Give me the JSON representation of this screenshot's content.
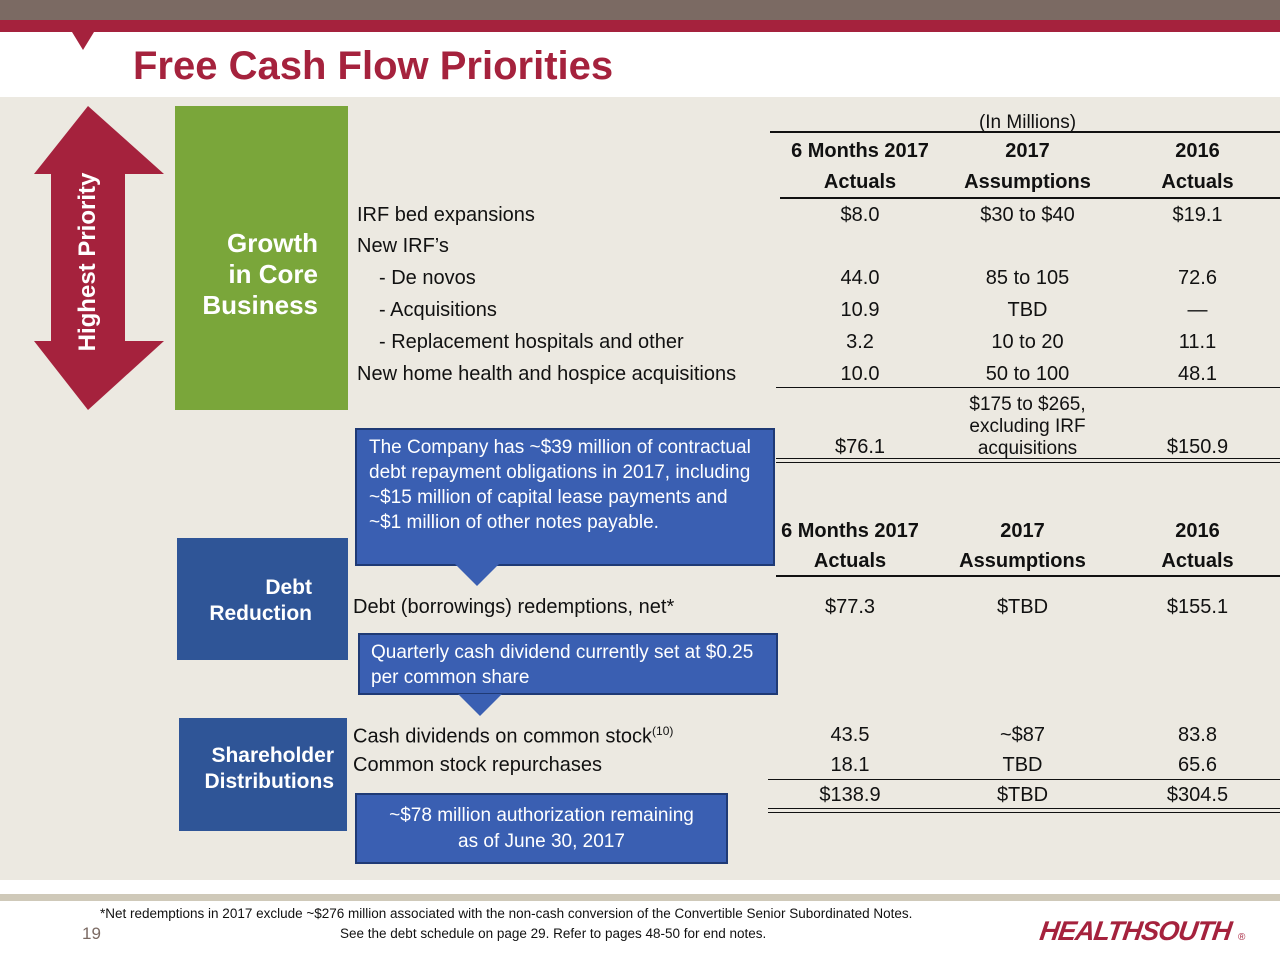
{
  "slide": {
    "title": "Free Cash Flow Priorities",
    "side_label": "Highest Priority",
    "page_number": "19",
    "logo_text": "HEALTHSOUTH",
    "logo_mark": "®"
  },
  "colors": {
    "brand_red": "#a5223d",
    "growth_green": "#7aa63a",
    "callout_blue": "#3a5fb2",
    "header_brown": "#7b6a63"
  },
  "units_note": "(In Millions)",
  "categories": {
    "growth": [
      "Growth",
      "in Core",
      "Business"
    ],
    "debt": [
      "Debt",
      "Reduction"
    ],
    "shareholder": [
      "Shareholder",
      "Distributions"
    ]
  },
  "table1": {
    "headers": [
      {
        "line1": "6 Months 2017",
        "line2": "Actuals"
      },
      {
        "line1": "2017",
        "line2": "Assumptions"
      },
      {
        "line1": "2016",
        "line2": "Actuals"
      }
    ],
    "rows": [
      {
        "label": "IRF bed expansions",
        "v1": "$8.0",
        "v2": "$30 to $40",
        "v3": "$19.1"
      },
      {
        "label": "New IRF’s",
        "v1": "",
        "v2": "",
        "v3": ""
      },
      {
        "label": "- De novos",
        "v1": "44.0",
        "v2": "85 to 105",
        "v3": "72.6"
      },
      {
        "label": "- Acquisitions",
        "v1": "10.9",
        "v2": "TBD",
        "v3": "—"
      },
      {
        "label": "- Replacement hospitals and other",
        "v1": "3.2",
        "v2": "10 to 20",
        "v3": "11.1"
      },
      {
        "label": "New home health and hospice acquisitions",
        "v1": "10.0",
        "v2": "50 to 100",
        "v3": "48.1"
      }
    ],
    "total": {
      "v1": "$76.1",
      "v2_lines": [
        "$175 to $265,",
        "excluding IRF",
        "acquisitions"
      ],
      "v3": "$150.9"
    }
  },
  "table2": {
    "headers": [
      {
        "line1": "6 Months 2017",
        "line2": "Actuals"
      },
      {
        "line1": "2017",
        "line2": "Assumptions"
      },
      {
        "line1": "2016",
        "line2": "Actuals"
      }
    ],
    "debt_row": {
      "label": "Debt (borrowings) redemptions, net*",
      "v1": "$77.3",
      "v2": "$TBD",
      "v3": "$155.1"
    },
    "dividends_row": {
      "label": "Cash dividends on common stock",
      "superscript": "(10)",
      "v1": "43.5",
      "v2": "~$87",
      "v3": "83.8"
    },
    "repurchase_row": {
      "label": "Common stock repurchases",
      "v1": "18.1",
      "v2": "TBD",
      "v3": "65.6"
    },
    "total": {
      "v1": "$138.9",
      "v2": "$TBD",
      "v3": "$304.5"
    }
  },
  "callouts": {
    "debt": "The Company has ~$39 million of contractual debt repayment obligations in 2017, including ~$15 million of capital lease payments and ~$1 million of other notes payable.",
    "dividend": "Quarterly cash dividend currently set at $0.25 per common share",
    "authorization_line1": "~$78 million authorization remaining",
    "authorization_line2": "as of June 30, 2017"
  },
  "footnotes": {
    "net_redemptions": "*Net redemptions in 2017 exclude ~$276 million associated with the non-cash conversion of the Convertible Senior Subordinated Notes.",
    "debt_schedule": "See the debt schedule on page 29. Refer to pages 48-50 for end notes."
  }
}
